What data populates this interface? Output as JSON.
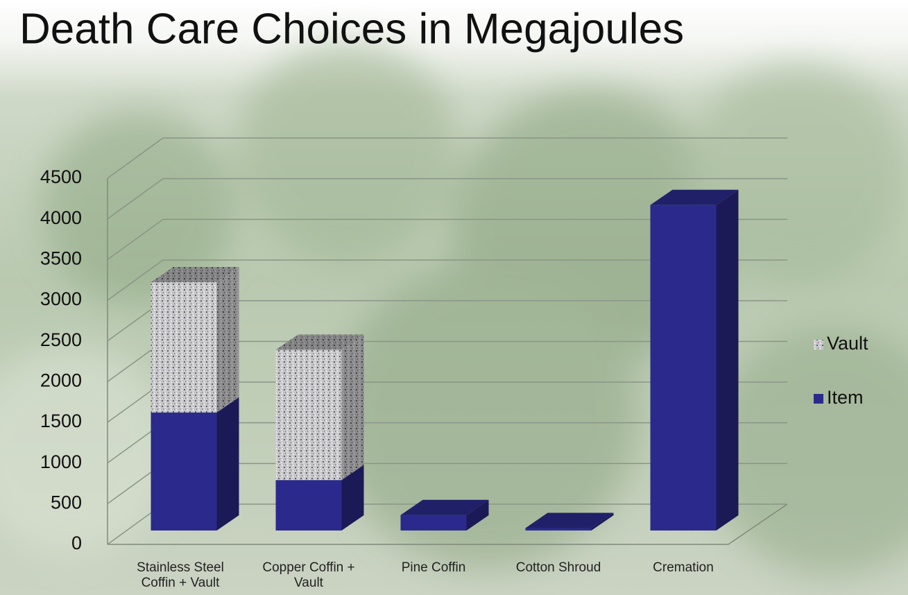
{
  "chart_data": {
    "type": "bar",
    "stacked": true,
    "three_d": true,
    "title": "Death Care Choices in Megajoules",
    "categories": [
      "Stainless Steel Coffin + Vault",
      "Copper Coffin + Vault",
      "Pine Coffin",
      "Cotton Shroud",
      "Cremation"
    ],
    "series": [
      {
        "name": "Item",
        "color": "#2b2a8c",
        "values": [
          1450,
          620,
          190,
          30,
          4000
        ]
      },
      {
        "name": "Vault",
        "color": "#a9a9ad",
        "values": [
          1600,
          1600,
          0,
          0,
          0
        ]
      }
    ],
    "ylim": [
      0,
      4500
    ],
    "yticks": [
      0,
      500,
      1000,
      1500,
      2000,
      2500,
      3000,
      3500,
      4000,
      4500
    ],
    "grid": true,
    "legend": "right"
  }
}
